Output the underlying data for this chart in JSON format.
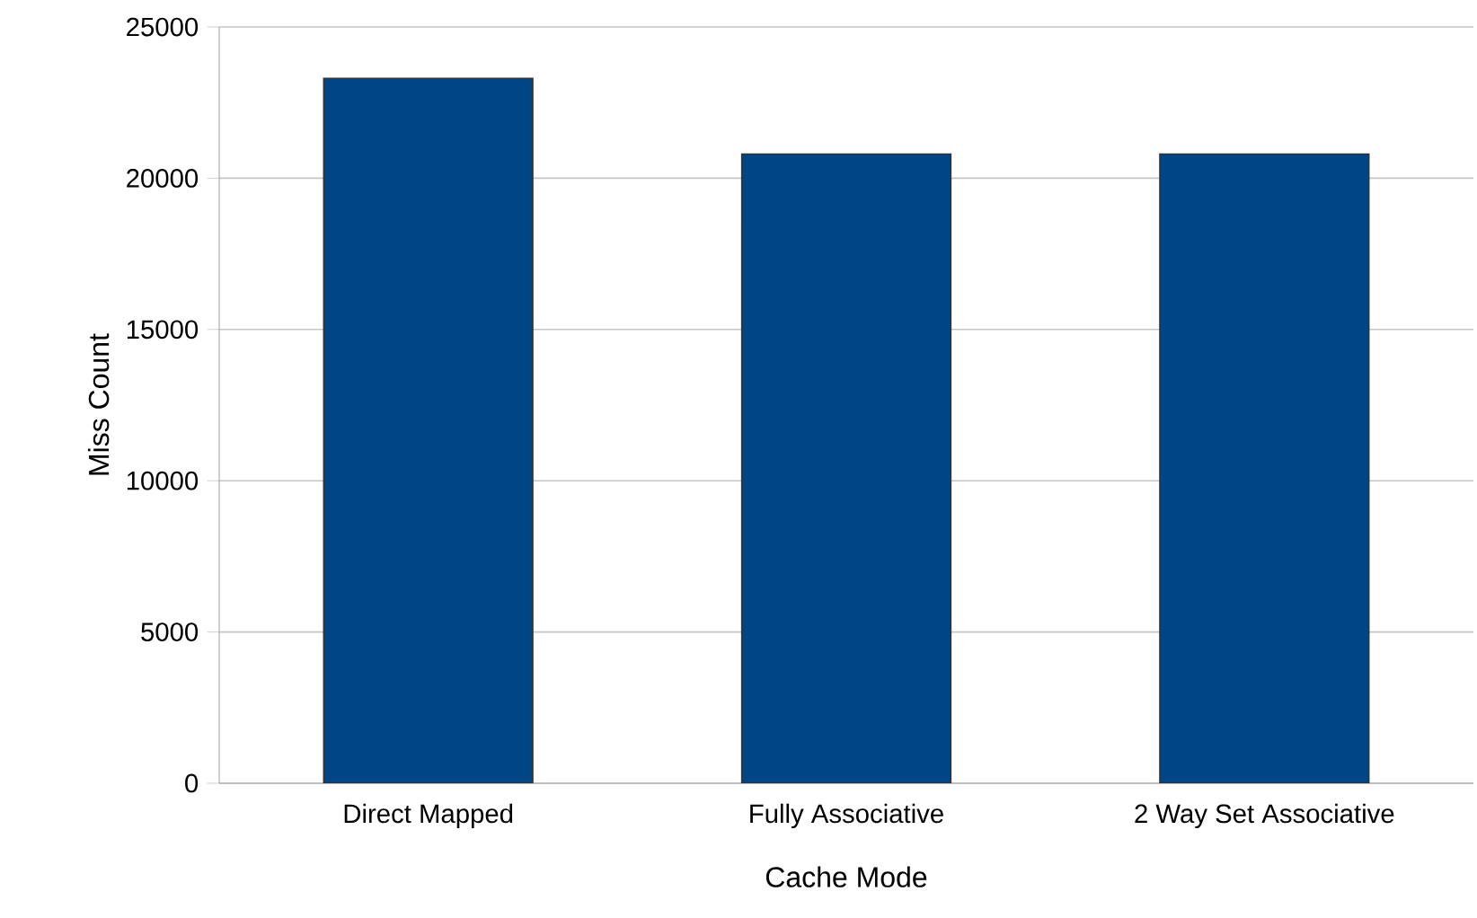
{
  "chart_data": {
    "type": "bar",
    "xlabel": "Cache Mode",
    "ylabel": "Miss Count",
    "categories": [
      "Direct Mapped",
      "Fully Associative",
      "2 Way Set Associative"
    ],
    "values": [
      23300,
      20800,
      20800
    ],
    "color": "#004586",
    "ylim": [
      0,
      25000
    ],
    "yticks": [
      0,
      5000,
      10000,
      15000,
      20000,
      25000
    ],
    "grid": "y"
  }
}
